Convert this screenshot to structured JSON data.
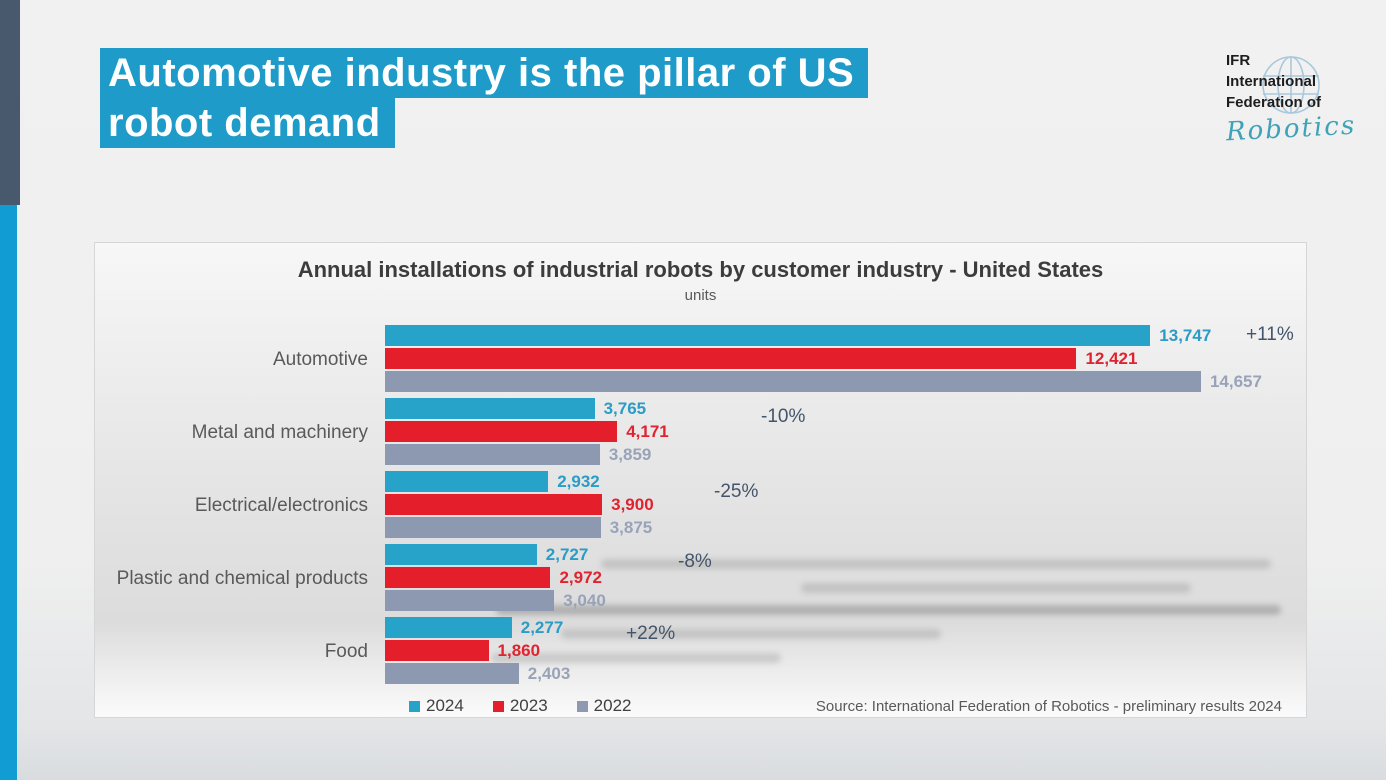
{
  "slide": {
    "title_lines": [
      "Automotive industry is the pillar of US",
      "robot demand"
    ],
    "title_highlight_color": "#1e9bc8",
    "accent_strip_dark": "#48596e",
    "accent_strip_cyan": "#119cd4"
  },
  "logo": {
    "lines": [
      "IFR",
      "International",
      "Federation of"
    ],
    "script": "Robotics",
    "script_color": "#3fa3b8",
    "globe_color": "#a9c8dc"
  },
  "chart_data": {
    "type": "bar",
    "orientation": "horizontal",
    "title": "Annual installations of industrial robots by customer industry - United States",
    "subtitle": "units",
    "categories": [
      "Automotive",
      "Metal and machinery",
      "Electrical/electronics",
      "Plastic and chemical products",
      "Food"
    ],
    "series": [
      {
        "name": "2024",
        "color": "#27a2c9",
        "label_color": "#2a9cc6",
        "values": [
          13747,
          3765,
          2932,
          2727,
          2277
        ],
        "labels": [
          "13,747",
          "3,765",
          "2,932",
          "2,727",
          "2,277"
        ]
      },
      {
        "name": "2023",
        "color": "#e51e2b",
        "label_color": "#e0232f",
        "values": [
          12421,
          4171,
          3900,
          2972,
          1860
        ],
        "labels": [
          "12,421",
          "4,171",
          "3,900",
          "2,972",
          "1,860"
        ]
      },
      {
        "name": "2022",
        "color": "#8d99b0",
        "label_color": "#99a3b8",
        "values": [
          14657,
          3859,
          3875,
          3040,
          2403
        ],
        "labels": [
          "14,657",
          "3,859",
          "3,875",
          "3,040",
          "2,403"
        ]
      }
    ],
    "changes": [
      "+11%",
      "-10%",
      "-25%",
      "-8%",
      "+22%"
    ],
    "xlim": [
      0,
      16580
    ],
    "grid": false,
    "legend_position": "bottom",
    "source": "Source: International Federation of Robotics - preliminary results 2024"
  }
}
